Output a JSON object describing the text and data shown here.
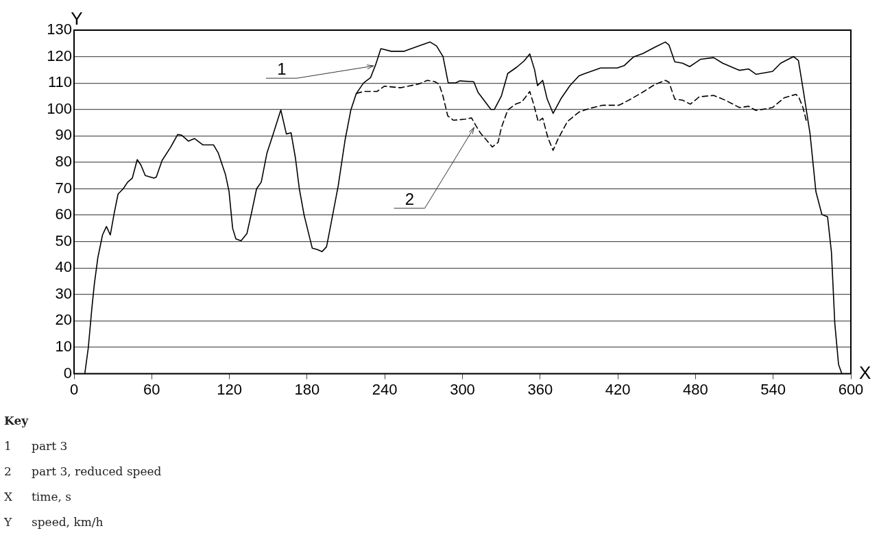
{
  "chart_data": {
    "type": "line",
    "xlabel": "X",
    "ylabel": "Y",
    "xlim": [
      0,
      600
    ],
    "xticks": [
      0,
      60,
      120,
      180,
      240,
      300,
      360,
      420,
      480,
      540,
      600
    ],
    "ylim": [
      0,
      130
    ],
    "yticks": [
      0,
      10,
      20,
      30,
      40,
      50,
      60,
      70,
      80,
      90,
      100,
      110,
      120,
      130
    ],
    "grid": "y",
    "legend": false,
    "marker": "none",
    "series": [
      {
        "color": "#000000",
        "line_style": "solid",
        "x": [
          8.3,
          11,
          13.8,
          15.7,
          18.4,
          22,
          25,
          28,
          31,
          34,
          38,
          41.4,
          45,
          48.8,
          51.6,
          55,
          61.7,
          63.5,
          68,
          74.6,
          80,
          83,
          88.4,
          93,
          99.4,
          107.7,
          111.4,
          117,
          119.7,
          122.5,
          125,
          129,
          133.5,
          137,
          141,
          144.6,
          149,
          153.8,
          159.7,
          164,
          167.6,
          171,
          174,
          177.7,
          184,
          187.8,
          191.5,
          195,
          197,
          204,
          209.4,
          213.8,
          218,
          223.6,
          229,
          233,
          237,
          245,
          255,
          266,
          275,
          280,
          285,
          289,
          294.5,
          298,
          308.7,
          312,
          322,
          324.6,
          330,
          335,
          342,
          347.7,
          352,
          355.7,
          358,
          362,
          365.4,
          370,
          376,
          383,
          390,
          394,
          406.7,
          419.5,
          425,
          432,
          439.5,
          448.5,
          456.7,
          459.5,
          464,
          470,
          475.5,
          484,
          494,
          501,
          514,
          521,
          526.7,
          539.5,
          545.8,
          555.8,
          559.5,
          563,
          568.5,
          573,
          577.6,
          582,
          585,
          587.6,
          590.5,
          593
        ],
        "values": [
          0,
          9.8,
          25,
          34,
          44,
          52.5,
          55.7,
          52.5,
          60.7,
          68,
          70,
          72.5,
          74,
          81,
          79,
          75,
          74,
          74.4,
          80.7,
          85.7,
          90.5,
          90.3,
          88,
          89,
          86.6,
          86.6,
          83.5,
          75.3,
          69,
          55,
          51,
          50.3,
          53,
          60.7,
          70,
          72.5,
          83.5,
          90.7,
          99.8,
          90.7,
          91.2,
          81.6,
          70,
          60,
          47.5,
          47,
          46.2,
          48,
          53,
          71,
          88.6,
          99.8,
          106,
          110,
          112,
          117,
          123,
          122,
          122,
          124,
          125.5,
          124,
          120,
          110,
          110,
          110.8,
          110.5,
          106.5,
          100,
          100,
          105,
          113.6,
          116,
          118.4,
          121,
          115,
          109,
          111,
          104,
          98.5,
          104,
          109,
          112.7,
          113.5,
          115.7,
          115.7,
          116.6,
          119.8,
          121.2,
          123.5,
          125.5,
          124.4,
          118,
          117.5,
          116.2,
          119,
          119.6,
          117.5,
          114.8,
          115.3,
          113.3,
          114.4,
          117.5,
          120,
          118.5,
          108,
          90.7,
          68.9,
          60.3,
          59.4,
          46,
          19,
          3.5,
          0
        ]
      },
      {
        "color": "#000000",
        "line_style": "dashed",
        "x": [
          218,
          223.6,
          234,
          239.7,
          252,
          266,
          273,
          278.7,
          282,
          285,
          288.6,
          293,
          302,
          307,
          310.6,
          314,
          318.6,
          323,
          327.5,
          330,
          335,
          341,
          346,
          352,
          355,
          358.5,
          362,
          366,
          370,
          373.5,
          381,
          390,
          397.6,
          408.5,
          421,
          430,
          439.5,
          448.5,
          456.7,
          459.5,
          464,
          470,
          476,
          483,
          494,
          503,
          514,
          521,
          526.7,
          539.5,
          548.5,
          557.6,
          560,
          563,
          565.8
        ],
        "values": [
          106,
          106.8,
          106.8,
          108.8,
          108.2,
          109.6,
          111,
          110.5,
          109.5,
          105,
          97.6,
          95.9,
          96.3,
          96.8,
          93.7,
          91,
          88.4,
          85.8,
          87.5,
          93,
          99.8,
          102,
          102.9,
          106.8,
          102,
          95.4,
          96.7,
          89.3,
          84.5,
          88.5,
          95.4,
          99,
          100.3,
          101.6,
          101.6,
          103.9,
          106.6,
          109.4,
          111,
          110.3,
          103.9,
          103.5,
          102,
          104.8,
          105.3,
          103.5,
          100.7,
          101.2,
          99.6,
          100.7,
          104.4,
          105.7,
          104.4,
          100.7,
          95.3
        ]
      }
    ],
    "annotations": [
      {
        "text": "1",
        "x": 233,
        "y": 117
      },
      {
        "text": "2",
        "x": 310.6,
        "y": 93.7
      },
      "Key",
      "1 part 3",
      "2 part 3, reduced speed",
      "X time, s",
      "Y speed, km/h"
    ]
  }
}
